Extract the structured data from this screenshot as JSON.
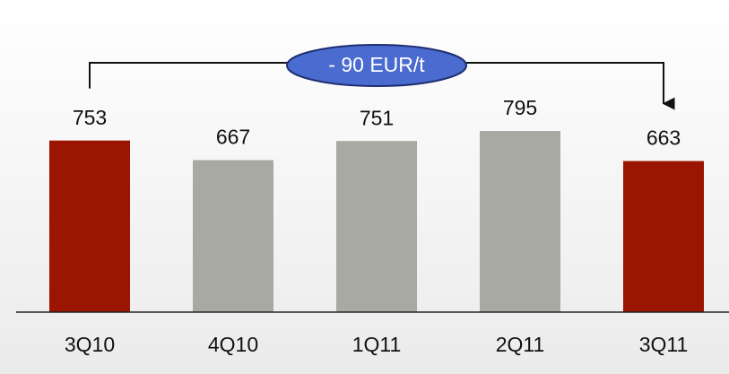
{
  "chart_data": {
    "type": "bar",
    "categories": [
      "3Q10",
      "4Q10",
      "1Q11",
      "2Q11",
      "3Q11"
    ],
    "values": [
      753,
      667,
      751,
      795,
      663
    ],
    "colors": [
      "#9b1500",
      "#a9a9a4",
      "#a9a9a4",
      "#a9a9a4",
      "#9b1500"
    ],
    "ylim": [
      0,
      1350
    ],
    "annotation": "- 90 EUR/t"
  }
}
